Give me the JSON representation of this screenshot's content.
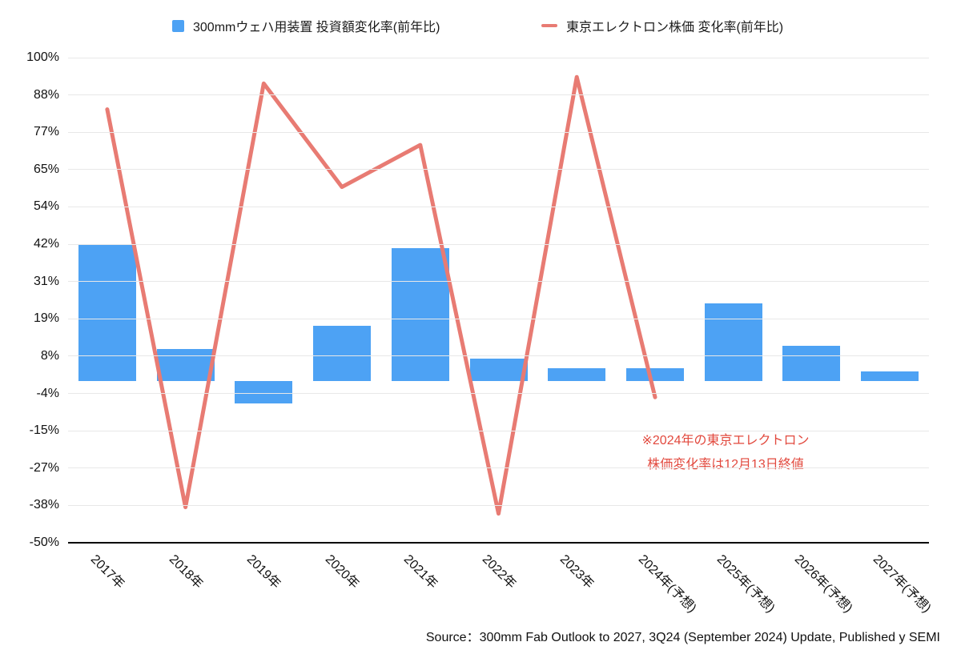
{
  "chart_data": {
    "type": "bar+line",
    "categories": [
      "2017年",
      "2018年",
      "2019年",
      "2020年",
      "2021年",
      "2022年",
      "2023年",
      "2024年(予想)",
      "2025年(予想)",
      "2026年(予想)",
      "2027年(予想)"
    ],
    "series": [
      {
        "name": "300mmウェハ用装置 投資額変化率(前年比)",
        "type": "bar",
        "color": "#4DA2F4",
        "values": [
          42,
          10,
          -7,
          17,
          41,
          7,
          4,
          4,
          24,
          11,
          3
        ]
      },
      {
        "name": "東京エレクトロン株価 変化率(前年比)",
        "type": "line",
        "color": "#E87B73",
        "values": [
          84,
          -39,
          92,
          60,
          73,
          -41,
          94,
          -5,
          null,
          null,
          null
        ]
      }
    ],
    "ylim": [
      -50,
      100
    ],
    "grid": true,
    "legend_position": "top",
    "y_axis": {
      "ticks": [
        {
          "label": "100%",
          "value": 100
        },
        {
          "label": "88%",
          "value": 88.46
        },
        {
          "label": "77%",
          "value": 76.92
        },
        {
          "label": "65%",
          "value": 65.38
        },
        {
          "label": "54%",
          "value": 53.85
        },
        {
          "label": "42%",
          "value": 42.31
        },
        {
          "label": "31%",
          "value": 30.77
        },
        {
          "label": "19%",
          "value": 19.23
        },
        {
          "label": "8%",
          "value": 7.69
        },
        {
          "label": "-4%",
          "value": -3.85
        },
        {
          "label": "-15%",
          "value": -15.38
        },
        {
          "label": "-27%",
          "value": -26.92
        },
        {
          "label": "-38%",
          "value": -38.46
        },
        {
          "label": "-50%",
          "value": -50
        }
      ]
    }
  },
  "annotation": {
    "line1": "※2024年の東京エレクトロン",
    "line2": "株価変化率は12月13日終値",
    "color": "#E2493E"
  },
  "source": "Source：300mm Fab Outlook to 2027, 3Q24 (September 2024) Update, Published y SEMI"
}
